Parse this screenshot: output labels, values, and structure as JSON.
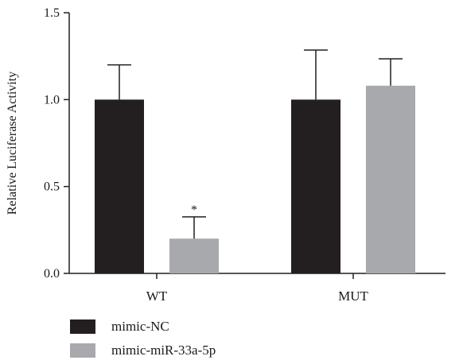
{
  "chart_data": {
    "type": "bar",
    "title": "",
    "xlabel": "",
    "ylabel": "Relative Luciferase Activity",
    "ylim": [
      0,
      1.5
    ],
    "yticks": [
      "0.0",
      "0.5",
      "1.0",
      "1.5"
    ],
    "categories": [
      "WT",
      "MUT"
    ],
    "series": [
      {
        "name": "mimic-NC",
        "color": "#231f20",
        "values": [
          1.0,
          1.0
        ],
        "errors": [
          0.2,
          0.285
        ]
      },
      {
        "name": "mimic-miR-33a-5p",
        "color": "#a7a9ac",
        "values": [
          0.2,
          1.08
        ],
        "errors": [
          0.125,
          0.155
        ]
      }
    ],
    "annotations": [
      {
        "text": "*",
        "category": "WT",
        "series": "mimic-miR-33a-5p"
      }
    ],
    "legend": "bottom-left",
    "grid": false
  }
}
